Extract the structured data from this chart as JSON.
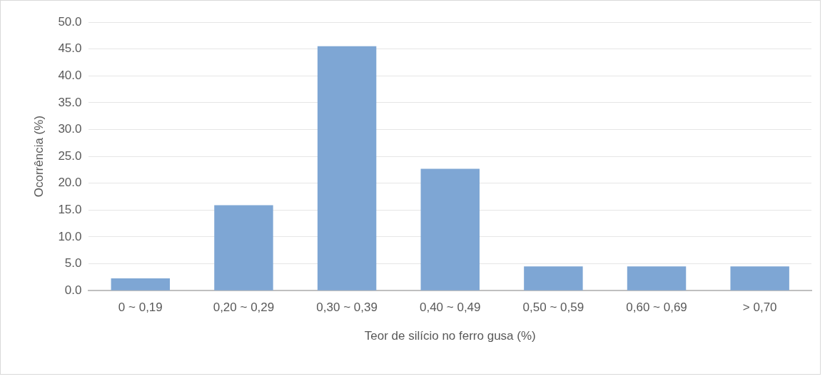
{
  "chart_data": {
    "type": "bar",
    "xlabel": "Teor de silício no ferro gusa (%)",
    "ylabel": "Ocorrência (%)",
    "categories": [
      "0 ~ 0,19",
      "0,20 ~ 0,29",
      "0,30 ~ 0,39",
      "0,40 ~ 0,49",
      "0,50 ~ 0,59",
      "0,60 ~ 0,69",
      "> 0,70"
    ],
    "values": [
      2.3,
      15.9,
      45.5,
      22.7,
      4.5,
      4.5,
      4.5
    ],
    "color": "#7ea6d4",
    "ylim": [
      0,
      50
    ],
    "yticks": [
      {
        "value": 0,
        "label": "0.0"
      },
      {
        "value": 5,
        "label": "5.0"
      },
      {
        "value": 10,
        "label": "10.0"
      },
      {
        "value": 15,
        "label": "15.0"
      },
      {
        "value": 20,
        "label": "20.0"
      },
      {
        "value": 25,
        "label": "25.0"
      },
      {
        "value": 30,
        "label": "30.0"
      },
      {
        "value": 35,
        "label": "35.0"
      },
      {
        "value": 40,
        "label": "40.0"
      },
      {
        "value": 45,
        "label": "45.0"
      },
      {
        "value": 50,
        "label": "50.0"
      }
    ],
    "grid": "y",
    "legend": false
  }
}
